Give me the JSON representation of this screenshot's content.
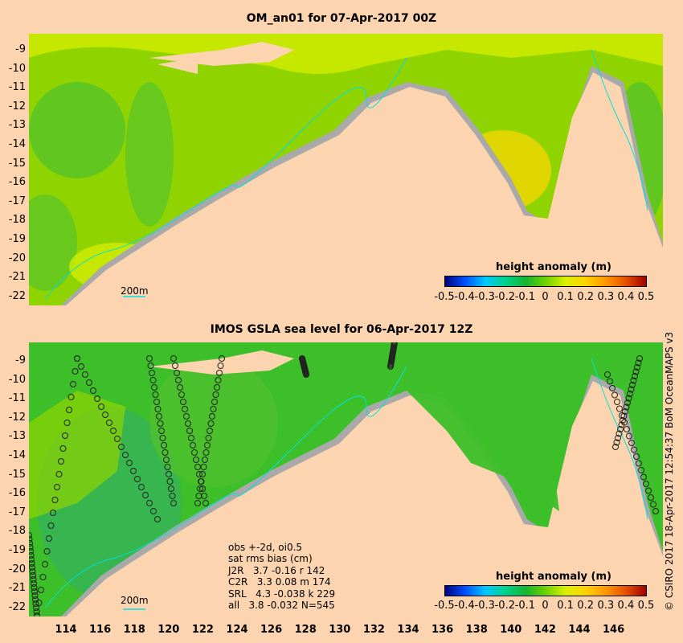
{
  "top_panel": {
    "title": "OM_an01 for 07-Apr-2017 00Z",
    "colorbar_title": "height anomaly (m)",
    "isobath_label": "200m"
  },
  "bottom_panel": {
    "title": "IMOS GSLA sea level  for 06-Apr-2017 12Z",
    "colorbar_title": "height anomaly (m)",
    "isobath_label": "200m",
    "obs_box": [
      "obs +-2d, oi0.5",
      "sat rms bias (cm)",
      "J2R   3.7 -0.16 r 142",
      "C2R   3.3 0.08 m 174",
      "SRL   4.3 -0.038 k 229",
      "all   3.8 -0.032 N=545"
    ]
  },
  "colorbar": {
    "colors": [
      "#00007f",
      "#0050ff",
      "#00c8ff",
      "#00d28c",
      "#14b432",
      "#6ed200",
      "#dcf000",
      "#ffd200",
      "#ff9600",
      "#e65000",
      "#a00000"
    ],
    "tick_labels": [
      "-0.5",
      "-0.4",
      "-0.3",
      "-0.2",
      "-0.1",
      "0",
      "0.1",
      "0.2",
      "0.3",
      "0.4",
      "0.5"
    ]
  },
  "axes": {
    "lat_labels": [
      "-9",
      "-10",
      "-11",
      "-12",
      "-13",
      "-14",
      "-15",
      "-16",
      "-17",
      "-18",
      "-19",
      "-20",
      "-21",
      "-22"
    ],
    "lon_labels": [
      "114",
      "116",
      "118",
      "120",
      "122",
      "124",
      "126",
      "128",
      "130",
      "132",
      "134",
      "136",
      "138",
      "140",
      "142",
      "144",
      "146"
    ]
  },
  "credit": "© CSIRO 2017  18-Apr-2017 12:54:37 BoM OceanMAPS v3",
  "colors": {
    "land": "#fcd5b0",
    "shelf": "#a9a9a9",
    "ocean_green": "#8fd400",
    "ocean_yellow": "#dcf000",
    "ocean_dark_green": "#3cbf28",
    "isobath": "#00e0e0"
  }
}
